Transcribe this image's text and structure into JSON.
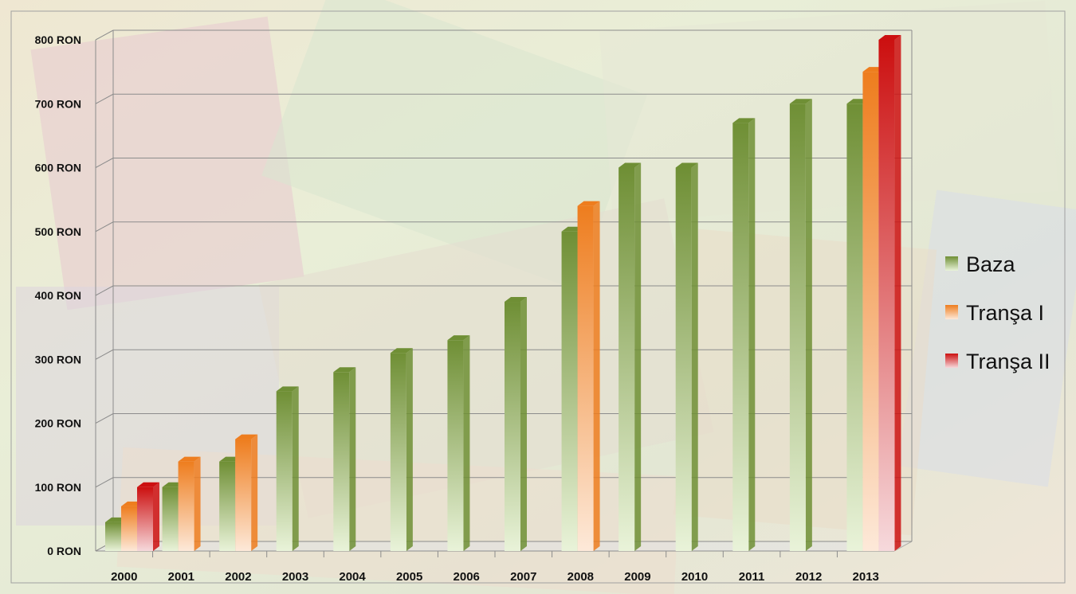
{
  "chart_data": {
    "type": "bar",
    "title": "",
    "xlabel": "",
    "ylabel": "",
    "ylim": [
      0,
      800
    ],
    "y_ticks": [
      "0 RON",
      "100 RON",
      "200 RON",
      "300 RON",
      "400 RON",
      "500 RON",
      "600 RON",
      "700 RON",
      "800 RON"
    ],
    "y_tick_values": [
      0,
      100,
      200,
      300,
      400,
      500,
      600,
      700,
      800
    ],
    "grid": true,
    "legend_position": "right",
    "categories": [
      "2000",
      "2001",
      "2002",
      "2003",
      "2004",
      "2005",
      "2006",
      "2007",
      "2008",
      "2009",
      "2010",
      "2011",
      "2012",
      "2013"
    ],
    "series": [
      {
        "name": "Baza",
        "color_top": "#6f8f35",
        "color_bottom": "#e9f3d9",
        "values": [
          45,
          100,
          140,
          250,
          280,
          310,
          330,
          390,
          500,
          600,
          600,
          670,
          700,
          700
        ]
      },
      {
        "name": "Tranşa I",
        "color_top": "#ee7d1e",
        "color_bottom": "#fde9d9",
        "values": [
          70,
          140,
          175,
          null,
          null,
          null,
          null,
          null,
          540,
          null,
          null,
          null,
          null,
          750
        ]
      },
      {
        "name": "Tranşa II",
        "color_top": "#cc1010",
        "color_bottom": "#f6d9dc",
        "values": [
          100,
          null,
          null,
          null,
          null,
          null,
          null,
          null,
          null,
          null,
          null,
          null,
          null,
          800
        ]
      }
    ]
  }
}
